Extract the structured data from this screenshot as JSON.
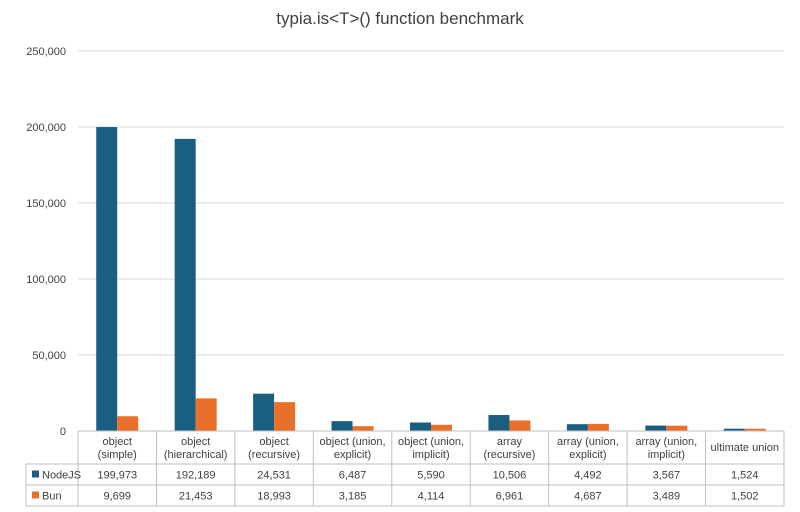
{
  "chart_data": {
    "type": "bar",
    "title": "typia.is<T>() function benchmark",
    "categories": [
      [
        "object",
        "(simple)"
      ],
      [
        "object",
        "(hierarchical)"
      ],
      [
        "object",
        "(recursive)"
      ],
      [
        "object (union,",
        "explicit)"
      ],
      [
        "object (union,",
        "implicit)"
      ],
      [
        "array",
        "(recursive)"
      ],
      [
        "array (union,",
        "explicit)"
      ],
      [
        "array (union,",
        "implicit)"
      ],
      [
        "ultimate union"
      ]
    ],
    "series": [
      {
        "name": "NodeJS",
        "color": "#1a5e80",
        "values": [
          199973,
          192189,
          24531,
          6487,
          5590,
          10506,
          4492,
          3567,
          1524
        ],
        "labels": [
          "199,973",
          "192,189",
          "24,531",
          "6,487",
          "5,590",
          "10,506",
          "4,492",
          "3,567",
          "1,524"
        ]
      },
      {
        "name": "Bun",
        "color": "#e8702a",
        "values": [
          9699,
          21453,
          18993,
          3185,
          4114,
          6961,
          4687,
          3489,
          1502
        ],
        "labels": [
          "9,699",
          "21,453",
          "18,993",
          "3,185",
          "4,114",
          "6,961",
          "4,687",
          "3,489",
          "1,502"
        ]
      }
    ],
    "ylim": [
      0,
      250000
    ],
    "yticks": [
      0,
      50000,
      100000,
      150000,
      200000,
      250000
    ],
    "ytick_labels": [
      "0",
      "50,000",
      "100,000",
      "150,000",
      "200,000",
      "250,000"
    ],
    "grid": true,
    "legend": "data-table"
  }
}
